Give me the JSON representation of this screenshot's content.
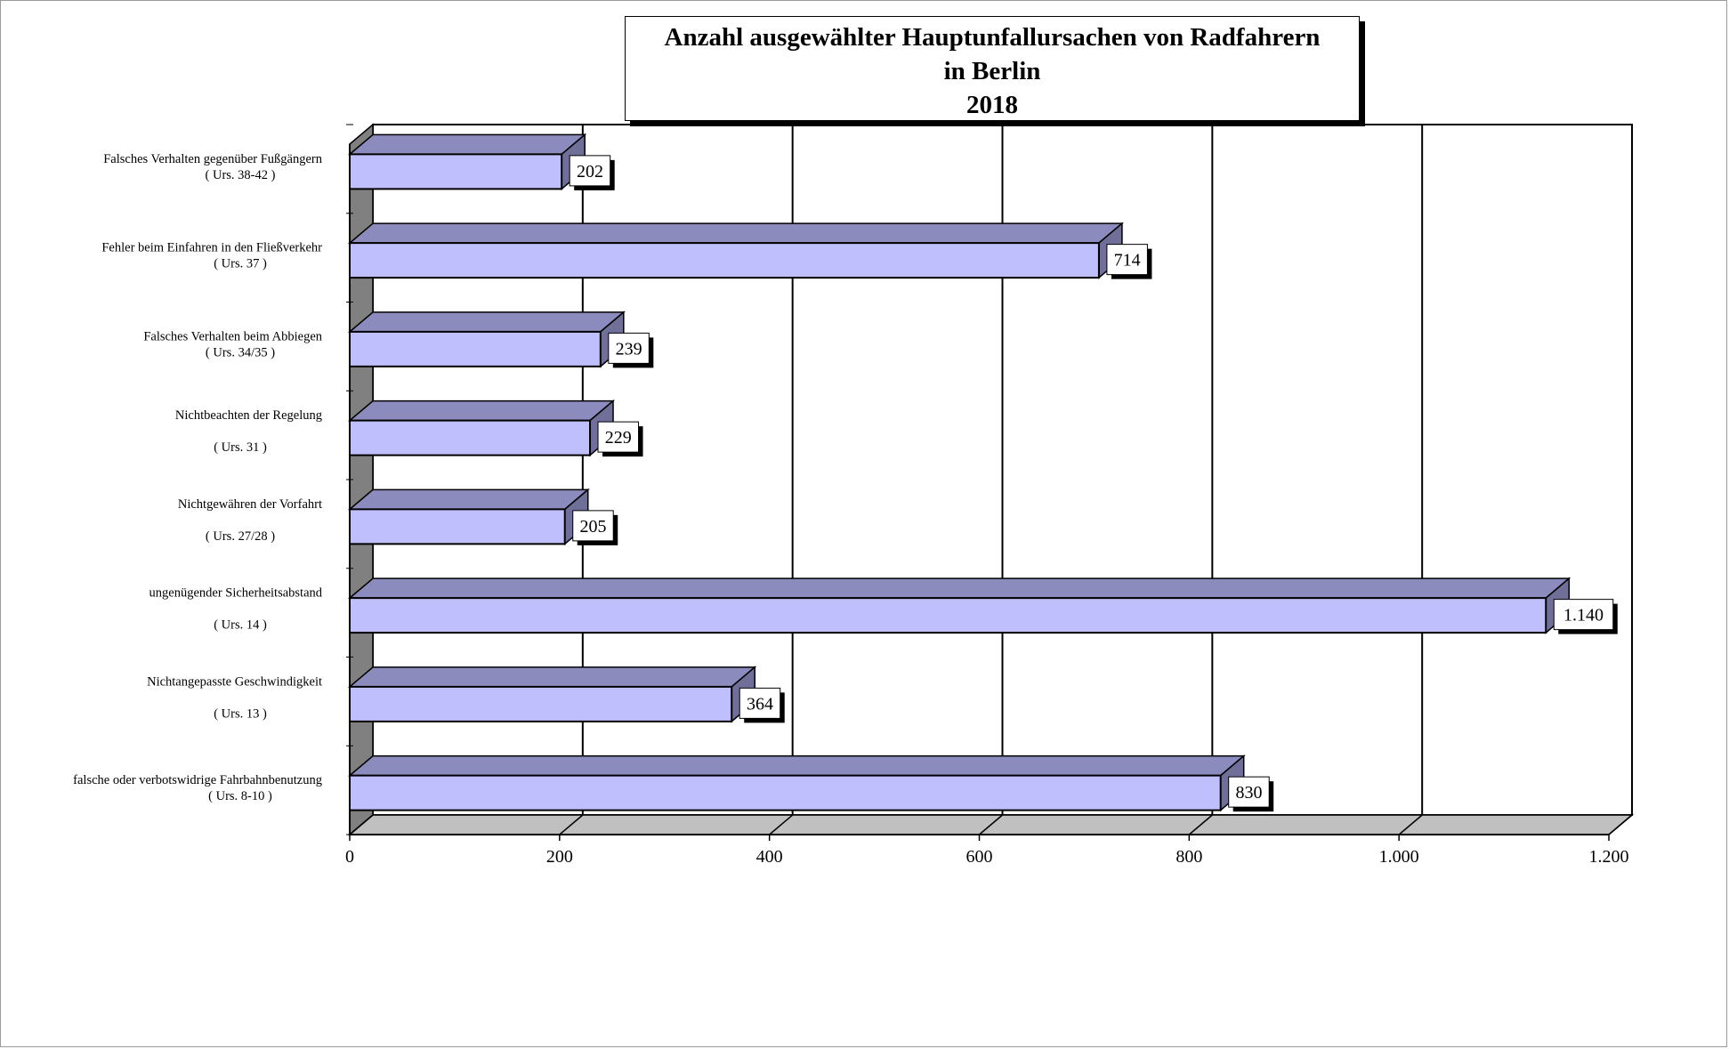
{
  "chart_data": {
    "type": "bar",
    "orientation": "horizontal",
    "title_lines": [
      "Anzahl ausgewählter Hauptunfallursachen von Radfahrern",
      "in Berlin",
      "2018"
    ],
    "categories": [
      {
        "line1": "falsche oder verbotswidrige Fahrbahnbenutzung",
        "line2": "( Urs. 8-10 )",
        "spaced": false
      },
      {
        "line1": "Nichtangepasste Geschwindigkeit",
        "line2": "( Urs. 13 )",
        "spaced": true
      },
      {
        "line1": "ungenügender Sicherheitsabstand",
        "line2": "( Urs. 14 )",
        "spaced": true
      },
      {
        "line1": "Nichtgewähren der Vorfahrt",
        "line2": "( Urs. 27/28 )",
        "spaced": true
      },
      {
        "line1": "Nichtbeachten der Regelung",
        "line2": "( Urs. 31 )",
        "spaced": true
      },
      {
        "line1": "Falsches Verhalten beim Abbiegen",
        "line2": "( Urs. 34/35 )",
        "spaced": false
      },
      {
        "line1": "Fehler beim Einfahren in den Fließverkehr",
        "line2": "( Urs. 37 )",
        "spaced": false
      },
      {
        "line1": "Falsches Verhalten gegenüber Fußgängern",
        "line2": "( Urs. 38-42 )",
        "spaced": false
      }
    ],
    "values": [
      830,
      364,
      1140,
      205,
      229,
      239,
      714,
      202
    ],
    "value_labels": [
      "830",
      "364",
      "1.140",
      "205",
      "229",
      "239",
      "714",
      "202"
    ],
    "xlim": [
      0,
      1200
    ],
    "x_ticks": [
      0,
      200,
      400,
      600,
      800,
      1000,
      1200
    ],
    "x_tick_labels": [
      "0",
      "200",
      "400",
      "600",
      "800",
      "1.000",
      "1.200"
    ],
    "grid": true,
    "legend": "none",
    "style": "3d",
    "colors": {
      "bar_front": "#bfbffd",
      "bar_top": "#8b8bbd",
      "bar_side": "#6f6f9a",
      "floor": "#c0c0c0",
      "left_wall": "#808080"
    }
  }
}
